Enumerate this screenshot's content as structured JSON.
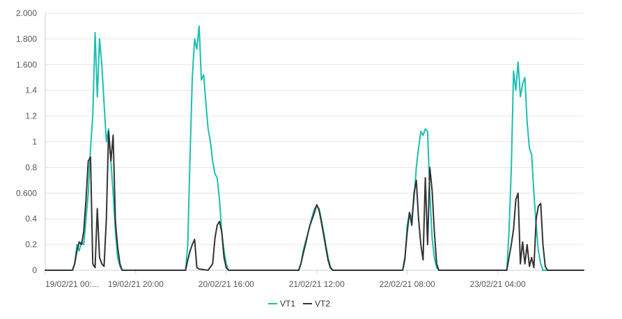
{
  "chart_data": {
    "type": "line",
    "colors": {
      "VT1": "#1bbfb0",
      "VT2": "#333333"
    },
    "x_start": "19/02/21 00:00",
    "x_end": "23/02/21 23:00",
    "x_tick_labels": [
      "19/02/21 00:...",
      "19/02/21 20:00",
      "20/02/21 16:00",
      "21/02/21 12:00",
      "22/02/21 08:00",
      "23/02/21 04:00"
    ],
    "x_tick_dates": [
      "19/02/21 00:00",
      "19/02/21 20:00",
      "20/02/21 16:00",
      "21/02/21 12:00",
      "22/02/21 08:00",
      "23/02/21 04:00"
    ],
    "y_tick_labels": [
      "0",
      "0.2",
      "0.4",
      "0.600",
      "0.8",
      "1",
      "1.2",
      "1.4",
      "1.600",
      "1.800",
      "2.000"
    ],
    "ylim": [
      0,
      2
    ],
    "grid": true,
    "legend_position": "bottom-center",
    "series": [
      {
        "name": "VT1",
        "points": [
          [
            "19/02/21 00:00",
            0
          ],
          [
            "19/02/21 06:00",
            0
          ],
          [
            "19/02/21 06:30",
            0.05
          ],
          [
            "19/02/21 07:00",
            0.2
          ],
          [
            "19/02/21 07:30",
            0.15
          ],
          [
            "19/02/21 08:00",
            0.22
          ],
          [
            "19/02/21 08:30",
            0.2
          ],
          [
            "19/02/21 09:00",
            0.4
          ],
          [
            "19/02/21 09:30",
            0.6
          ],
          [
            "19/02/21 10:00",
            0.95
          ],
          [
            "19/02/21 10:30",
            1.2
          ],
          [
            "19/02/21 11:00",
            1.85
          ],
          [
            "19/02/21 11:30",
            1.35
          ],
          [
            "19/02/21 12:00",
            1.8
          ],
          [
            "19/02/21 12:30",
            1.6
          ],
          [
            "19/02/21 13:00",
            1.3
          ],
          [
            "19/02/21 13:30",
            1.0
          ],
          [
            "19/02/21 14:00",
            1.1
          ],
          [
            "19/02/21 14:30",
            0.85
          ],
          [
            "19/02/21 15:00",
            0.6
          ],
          [
            "19/02/21 15:30",
            0.3
          ],
          [
            "19/02/21 16:00",
            0.1
          ],
          [
            "19/02/21 16:30",
            0.03
          ],
          [
            "19/02/21 17:00",
            0
          ],
          [
            "20/02/21 07:00",
            0
          ],
          [
            "20/02/21 07:30",
            0.2
          ],
          [
            "20/02/21 08:00",
            0.9
          ],
          [
            "20/02/21 08:30",
            1.5
          ],
          [
            "20/02/21 09:00",
            1.8
          ],
          [
            "20/02/21 09:30",
            1.72
          ],
          [
            "20/02/21 10:00",
            1.9
          ],
          [
            "20/02/21 10:30",
            1.48
          ],
          [
            "20/02/21 11:00",
            1.52
          ],
          [
            "20/02/21 11:30",
            1.3
          ],
          [
            "20/02/21 12:00",
            1.1
          ],
          [
            "20/02/21 12:30",
            1.0
          ],
          [
            "20/02/21 13:00",
            0.85
          ],
          [
            "20/02/21 13:30",
            0.75
          ],
          [
            "20/02/21 14:00",
            0.72
          ],
          [
            "20/02/21 14:30",
            0.55
          ],
          [
            "20/02/21 15:00",
            0.3
          ],
          [
            "20/02/21 15:30",
            0.15
          ],
          [
            "20/02/21 16:00",
            0.05
          ],
          [
            "20/02/21 16:30",
            0
          ],
          [
            "21/02/21 08:00",
            0
          ],
          [
            "21/02/21 08:30",
            0.05
          ],
          [
            "21/02/21 09:00",
            0.15
          ],
          [
            "21/02/21 09:30",
            0.22
          ],
          [
            "21/02/21 10:00",
            0.28
          ],
          [
            "21/02/21 10:30",
            0.35
          ],
          [
            "21/02/21 11:00",
            0.42
          ],
          [
            "21/02/21 11:30",
            0.48
          ],
          [
            "21/02/21 12:00",
            0.5
          ],
          [
            "21/02/21 12:30",
            0.48
          ],
          [
            "21/02/21 13:00",
            0.4
          ],
          [
            "21/02/21 13:30",
            0.3
          ],
          [
            "21/02/21 14:00",
            0.2
          ],
          [
            "21/02/21 14:30",
            0.1
          ],
          [
            "21/02/21 15:00",
            0.03
          ],
          [
            "21/02/21 15:30",
            0
          ],
          [
            "22/02/21 07:00",
            0
          ],
          [
            "22/02/21 07:30",
            0.08
          ],
          [
            "22/02/21 08:00",
            0.35
          ],
          [
            "22/02/21 08:30",
            0.45
          ],
          [
            "22/02/21 09:00",
            0.4
          ],
          [
            "22/02/21 09:30",
            0.55
          ],
          [
            "22/02/21 10:00",
            0.8
          ],
          [
            "22/02/21 10:30",
            0.95
          ],
          [
            "22/02/21 11:00",
            1.08
          ],
          [
            "22/02/21 11:30",
            1.05
          ],
          [
            "22/02/21 12:00",
            1.1
          ],
          [
            "22/02/21 12:30",
            1.08
          ],
          [
            "22/02/21 13:00",
            0.6
          ],
          [
            "22/02/21 13:30",
            0.25
          ],
          [
            "22/02/21 14:00",
            0.1
          ],
          [
            "22/02/21 14:30",
            0.02
          ],
          [
            "22/02/21 15:00",
            0
          ],
          [
            "23/02/21 06:00",
            0
          ],
          [
            "23/02/21 06:30",
            0.3
          ],
          [
            "23/02/21 07:00",
            0.8
          ],
          [
            "23/02/21 07:30",
            1.55
          ],
          [
            "23/02/21 08:00",
            1.4
          ],
          [
            "23/02/21 08:30",
            1.62
          ],
          [
            "23/02/21 09:00",
            1.35
          ],
          [
            "23/02/21 09:30",
            1.45
          ],
          [
            "23/02/21 10:00",
            1.5
          ],
          [
            "23/02/21 10:30",
            1.15
          ],
          [
            "23/02/21 11:00",
            0.95
          ],
          [
            "23/02/21 11:30",
            0.9
          ],
          [
            "23/02/21 12:00",
            0.6
          ],
          [
            "23/02/21 12:30",
            0.35
          ],
          [
            "23/02/21 13:00",
            0.15
          ],
          [
            "23/02/21 13:30",
            0.05
          ],
          [
            "23/02/21 14:00",
            0
          ],
          [
            "23/02/21 23:00",
            0
          ]
        ]
      },
      {
        "name": "VT2",
        "points": [
          [
            "19/02/21 00:00",
            0
          ],
          [
            "19/02/21 06:00",
            0
          ],
          [
            "19/02/21 06:30",
            0.05
          ],
          [
            "19/02/21 07:00",
            0.15
          ],
          [
            "19/02/21 07:30",
            0.22
          ],
          [
            "19/02/21 08:00",
            0.2
          ],
          [
            "19/02/21 08:30",
            0.3
          ],
          [
            "19/02/21 09:00",
            0.55
          ],
          [
            "19/02/21 09:30",
            0.85
          ],
          [
            "19/02/21 10:00",
            0.88
          ],
          [
            "19/02/21 10:30",
            0.05
          ],
          [
            "19/02/21 11:00",
            0.02
          ],
          [
            "19/02/21 11:30",
            0.48
          ],
          [
            "19/02/21 12:00",
            0.1
          ],
          [
            "19/02/21 12:30",
            0.05
          ],
          [
            "19/02/21 13:00",
            0.03
          ],
          [
            "19/02/21 13:30",
            0.4
          ],
          [
            "19/02/21 14:00",
            1.08
          ],
          [
            "19/02/21 14:30",
            0.85
          ],
          [
            "19/02/21 15:00",
            1.05
          ],
          [
            "19/02/21 15:30",
            0.38
          ],
          [
            "19/02/21 16:00",
            0.18
          ],
          [
            "19/02/21 16:30",
            0.05
          ],
          [
            "19/02/21 17:00",
            0
          ],
          [
            "20/02/21 07:00",
            0
          ],
          [
            "20/02/21 07:30",
            0.08
          ],
          [
            "20/02/21 08:00",
            0.15
          ],
          [
            "20/02/21 08:30",
            0.2
          ],
          [
            "20/02/21 09:00",
            0.24
          ],
          [
            "20/02/21 09:30",
            0.02
          ],
          [
            "20/02/21 10:00",
            0.01
          ],
          [
            "20/02/21 12:00",
            0
          ],
          [
            "20/02/21 13:00",
            0.05
          ],
          [
            "20/02/21 13:30",
            0.25
          ],
          [
            "20/02/21 14:00",
            0.35
          ],
          [
            "20/02/21 14:30",
            0.38
          ],
          [
            "20/02/21 15:00",
            0.3
          ],
          [
            "20/02/21 15:30",
            0.1
          ],
          [
            "20/02/21 16:00",
            0.02
          ],
          [
            "20/02/21 16:30",
            0
          ],
          [
            "21/02/21 08:00",
            0
          ],
          [
            "21/02/21 08:30",
            0.05
          ],
          [
            "21/02/21 09:00",
            0.13
          ],
          [
            "21/02/21 09:30",
            0.2
          ],
          [
            "21/02/21 10:00",
            0.28
          ],
          [
            "21/02/21 10:30",
            0.35
          ],
          [
            "21/02/21 11:00",
            0.4
          ],
          [
            "21/02/21 11:30",
            0.45
          ],
          [
            "21/02/21 12:00",
            0.51
          ],
          [
            "21/02/21 12:30",
            0.47
          ],
          [
            "21/02/21 13:00",
            0.38
          ],
          [
            "21/02/21 13:30",
            0.28
          ],
          [
            "21/02/21 14:00",
            0.18
          ],
          [
            "21/02/21 14:30",
            0.08
          ],
          [
            "21/02/21 15:00",
            0.02
          ],
          [
            "21/02/21 15:30",
            0
          ],
          [
            "22/02/21 07:00",
            0
          ],
          [
            "22/02/21 07:30",
            0.1
          ],
          [
            "22/02/21 08:00",
            0.3
          ],
          [
            "22/02/21 08:30",
            0.45
          ],
          [
            "22/02/21 09:00",
            0.35
          ],
          [
            "22/02/21 09:30",
            0.6
          ],
          [
            "22/02/21 10:00",
            0.7
          ],
          [
            "22/02/21 10:30",
            0.4
          ],
          [
            "22/02/21 11:00",
            0.2
          ],
          [
            "22/02/21 11:30",
            0.08
          ],
          [
            "22/02/21 12:00",
            0.72
          ],
          [
            "22/02/21 12:30",
            0.2
          ],
          [
            "22/02/21 13:00",
            0.8
          ],
          [
            "22/02/21 13:30",
            0.62
          ],
          [
            "22/02/21 14:00",
            0.3
          ],
          [
            "22/02/21 14:30",
            0.05
          ],
          [
            "22/02/21 15:00",
            0
          ],
          [
            "23/02/21 06:00",
            0
          ],
          [
            "23/02/21 06:30",
            0.1
          ],
          [
            "23/02/21 07:00",
            0.2
          ],
          [
            "23/02/21 07:30",
            0.32
          ],
          [
            "23/02/21 08:00",
            0.55
          ],
          [
            "23/02/21 08:30",
            0.6
          ],
          [
            "23/02/21 09:00",
            0.05
          ],
          [
            "23/02/21 09:30",
            0.22
          ],
          [
            "23/02/21 10:00",
            0.05
          ],
          [
            "23/02/21 10:30",
            0.2
          ],
          [
            "23/02/21 11:00",
            0.03
          ],
          [
            "23/02/21 11:30",
            0.1
          ],
          [
            "23/02/21 12:00",
            0.02
          ],
          [
            "23/02/21 12:30",
            0.4
          ],
          [
            "23/02/21 13:00",
            0.5
          ],
          [
            "23/02/21 13:30",
            0.52
          ],
          [
            "23/02/21 14:00",
            0.2
          ],
          [
            "23/02/21 14:30",
            0.03
          ],
          [
            "23/02/21 15:00",
            0
          ],
          [
            "23/02/21 23:00",
            0
          ]
        ]
      }
    ]
  }
}
